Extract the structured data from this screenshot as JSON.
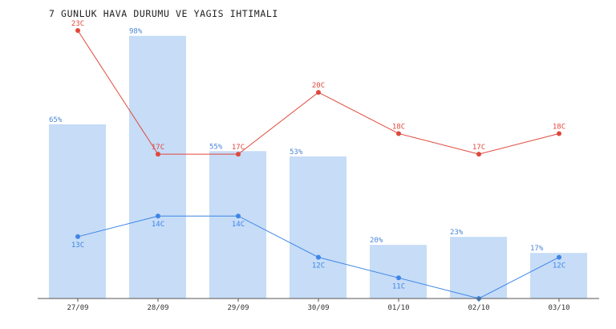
{
  "title": "7 GUNLUK HAVA DURUMU VE YAGIS IHTIMALI",
  "colors": {
    "bar": "#c6dcf7",
    "bar_label": "#4a86d8",
    "max_line": "#e0483c",
    "min_line": "#3f86e6",
    "axis": "#555555"
  },
  "chart_data": {
    "type": "bar",
    "categories": [
      "27/09",
      "28/09",
      "29/09",
      "30/09",
      "01/10",
      "02/10",
      "03/10"
    ],
    "series": [
      {
        "values": [
          65,
          98,
          55,
          53,
          20,
          23,
          17
        ],
        "labels": [
          "65%",
          "98%",
          "55%",
          "53%",
          "20%",
          "23%",
          "17%"
        ]
      },
      {
        "values": [
          23,
          17,
          17,
          20,
          18,
          17,
          18
        ],
        "labels": [
          "23C",
          "17C",
          "17C",
          "20C",
          "18C",
          "17C",
          "18C"
        ]
      },
      {
        "values": [
          13,
          14,
          14,
          12,
          11,
          10,
          12
        ],
        "labels": [
          "13C",
          "14C",
          "14C",
          "12C",
          "11C",
          "",
          "12C"
        ]
      }
    ],
    "grid": false,
    "legend": "none"
  }
}
